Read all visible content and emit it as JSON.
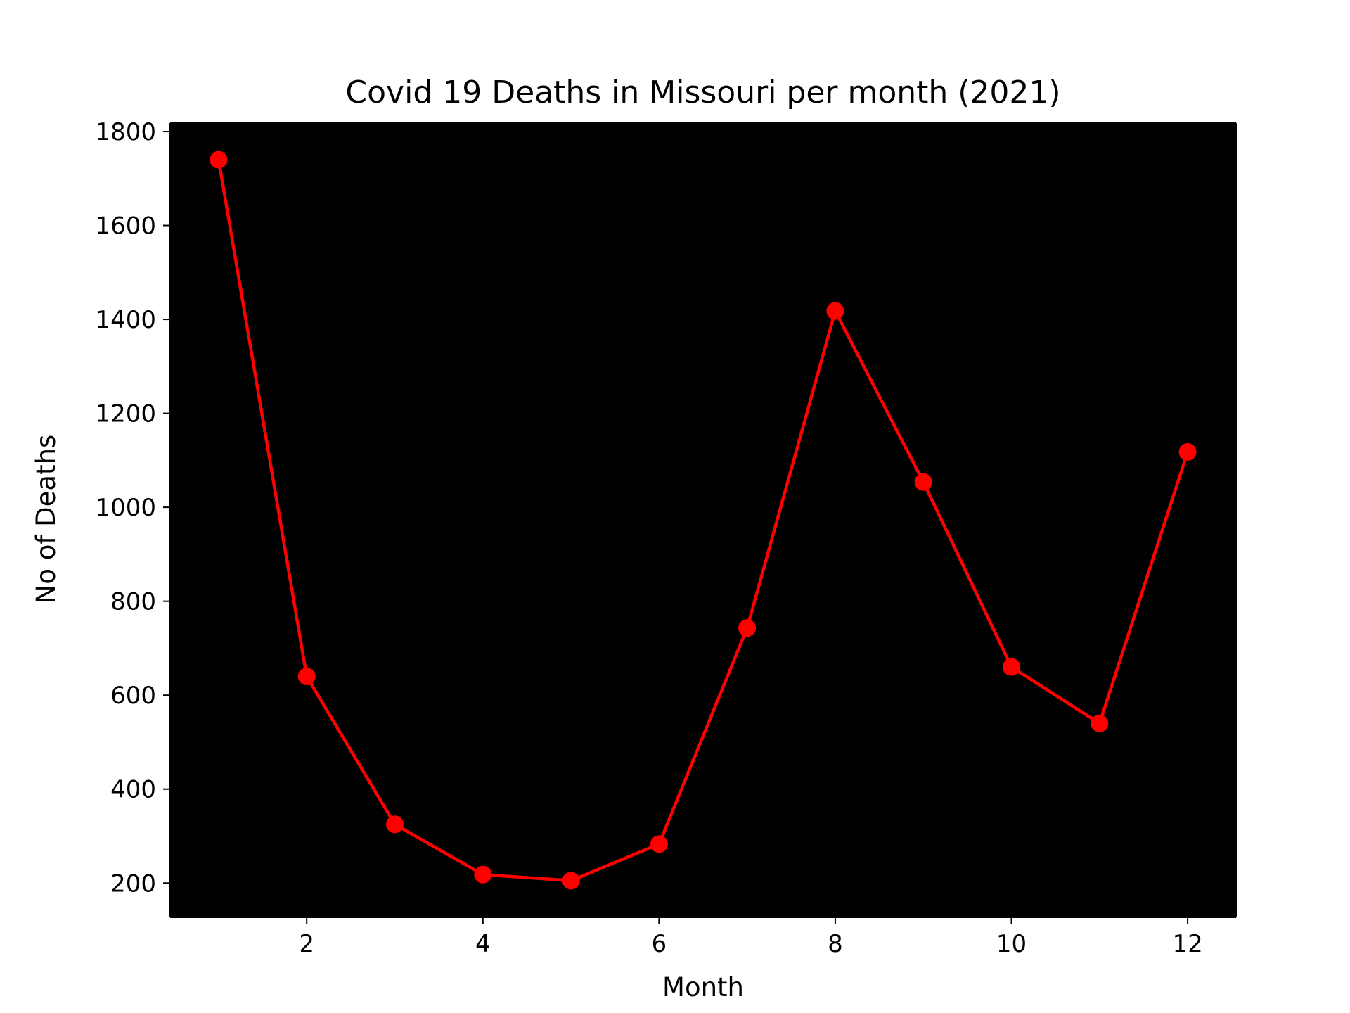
{
  "chart_data": {
    "type": "line",
    "title": "Covid 19 Deaths in Missouri per month (2021)",
    "xlabel": "Month",
    "ylabel": "No of Deaths",
    "x": [
      1,
      2,
      3,
      4,
      5,
      6,
      7,
      8,
      9,
      10,
      11,
      12
    ],
    "series": [
      {
        "values": [
          1740,
          640,
          325,
          218,
          205,
          283,
          743,
          1418,
          1054,
          660,
          540,
          1118
        ]
      }
    ],
    "xlim": [
      0.45,
      12.55
    ],
    "ylim": [
      127,
      1818
    ],
    "xticks": [
      2,
      4,
      6,
      8,
      10,
      12
    ],
    "yticks": [
      200,
      400,
      600,
      800,
      1000,
      1200,
      1400,
      1600,
      1800
    ],
    "grid": false,
    "legend": "none",
    "colors": {
      "line": "#ff0000",
      "marker": "#ff0000",
      "plot_background": "#000000",
      "figure_background": "#ffffff",
      "axis": "#000000"
    }
  }
}
